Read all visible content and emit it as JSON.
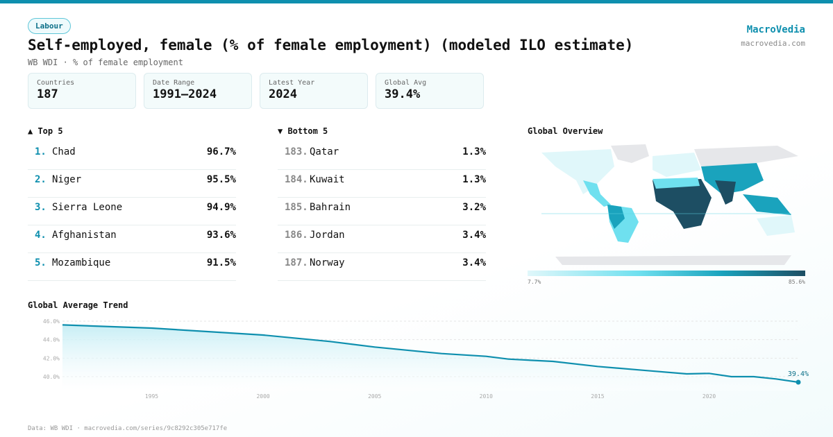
{
  "category": "Labour",
  "title": "Self-employed, female (% of female employment) (modeled ILO estimate)",
  "subtitle": "WB WDI · % of female employment",
  "brand": {
    "name": "MacroVedia",
    "url": "macrovedia.com"
  },
  "stats": [
    {
      "label": "Countries",
      "value": "187"
    },
    {
      "label": "Date Range",
      "value": "1991–2024"
    },
    {
      "label": "Latest Year",
      "value": "2024"
    },
    {
      "label": "Global Avg",
      "value": "39.4%"
    }
  ],
  "top5": {
    "heading": "▲ Top 5",
    "items": [
      {
        "rank": "1.",
        "name": "Chad",
        "value": "96.7%"
      },
      {
        "rank": "2.",
        "name": "Niger",
        "value": "95.5%"
      },
      {
        "rank": "3.",
        "name": "Sierra Leone",
        "value": "94.9%"
      },
      {
        "rank": "4.",
        "name": "Afghanistan",
        "value": "93.6%"
      },
      {
        "rank": "5.",
        "name": "Mozambique",
        "value": "91.5%"
      }
    ]
  },
  "bottom5": {
    "heading": "▼ Bottom 5",
    "items": [
      {
        "rank": "183.",
        "name": "Qatar",
        "value": "1.3%"
      },
      {
        "rank": "184.",
        "name": "Kuwait",
        "value": "1.3%"
      },
      {
        "rank": "185.",
        "name": "Bahrain",
        "value": "3.2%"
      },
      {
        "rank": "186.",
        "name": "Jordan",
        "value": "3.4%"
      },
      {
        "rank": "187.",
        "name": "Norway",
        "value": "3.4%"
      }
    ]
  },
  "map": {
    "heading": "Global Overview",
    "legend_min": "7.7%",
    "legend_max": "85.6%",
    "colors": [
      "#e0f7fa",
      "#6fe0ef",
      "#1aa3bd",
      "#1d4e63"
    ]
  },
  "chart_data": {
    "type": "area",
    "title": "Global Average Trend",
    "x": [
      1991,
      1995,
      2000,
      2003,
      2005,
      2008,
      2010,
      2011,
      2013,
      2015,
      2017,
      2019,
      2020,
      2021,
      2022,
      2023,
      2024
    ],
    "y": [
      45.6,
      45.25,
      44.5,
      43.8,
      43.2,
      42.5,
      42.2,
      41.9,
      41.65,
      41.1,
      40.7,
      40.3,
      40.35,
      40.0,
      40.0,
      39.75,
      39.4
    ],
    "yticks": [
      "40.0%",
      "42.0%",
      "44.0%",
      "46.0%"
    ],
    "ytick_values": [
      40,
      42,
      44,
      46
    ],
    "xticks": [
      1995,
      2000,
      2005,
      2010,
      2015,
      2020
    ],
    "xlim": [
      1991,
      2024
    ],
    "ylim": [
      38.5,
      46
    ],
    "last_label": "39.4%",
    "color": "#0e8fae",
    "grid": true
  },
  "footer": "Data: WB WDI · macrovedia.com/series/9c8292c305e717fe"
}
